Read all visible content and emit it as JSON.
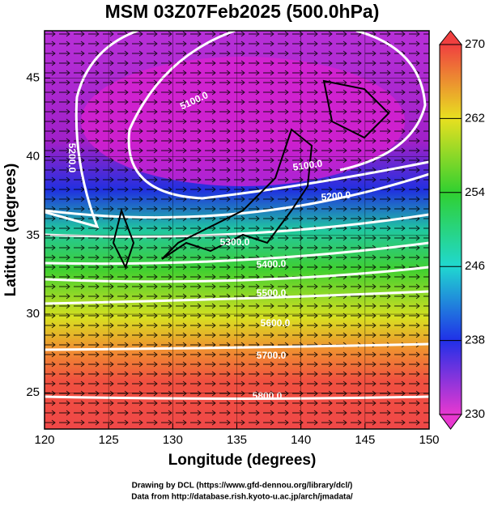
{
  "title": "MSM 03Z07Feb2025 (500.0hPa)",
  "x_label": "Longitude (degrees)",
  "y_label": "Latitude  (degrees)",
  "xlim": [
    120,
    150
  ],
  "xticks": [
    120,
    125,
    130,
    135,
    140,
    145,
    150
  ],
  "ylim": [
    22.7,
    48
  ],
  "yticks": [
    25,
    30,
    35,
    40,
    45
  ],
  "colorbar": {
    "lim": [
      230,
      270
    ],
    "ticks": [
      230,
      238,
      246,
      254,
      262,
      270
    ]
  },
  "contour_labels": [
    "5100.0",
    "5200.0",
    "5100.0",
    "5200.0",
    "5300.0",
    "5400.0",
    "5500.0",
    "5600.0",
    "5700.0",
    "5800.0"
  ],
  "footer": [
    "Drawing by DCL (https://www.gfd-dennou.org/library/dcl/)",
    "Data from http://database.rish.kyoto-u.ac.jp/arch/jmadata/"
  ]
}
